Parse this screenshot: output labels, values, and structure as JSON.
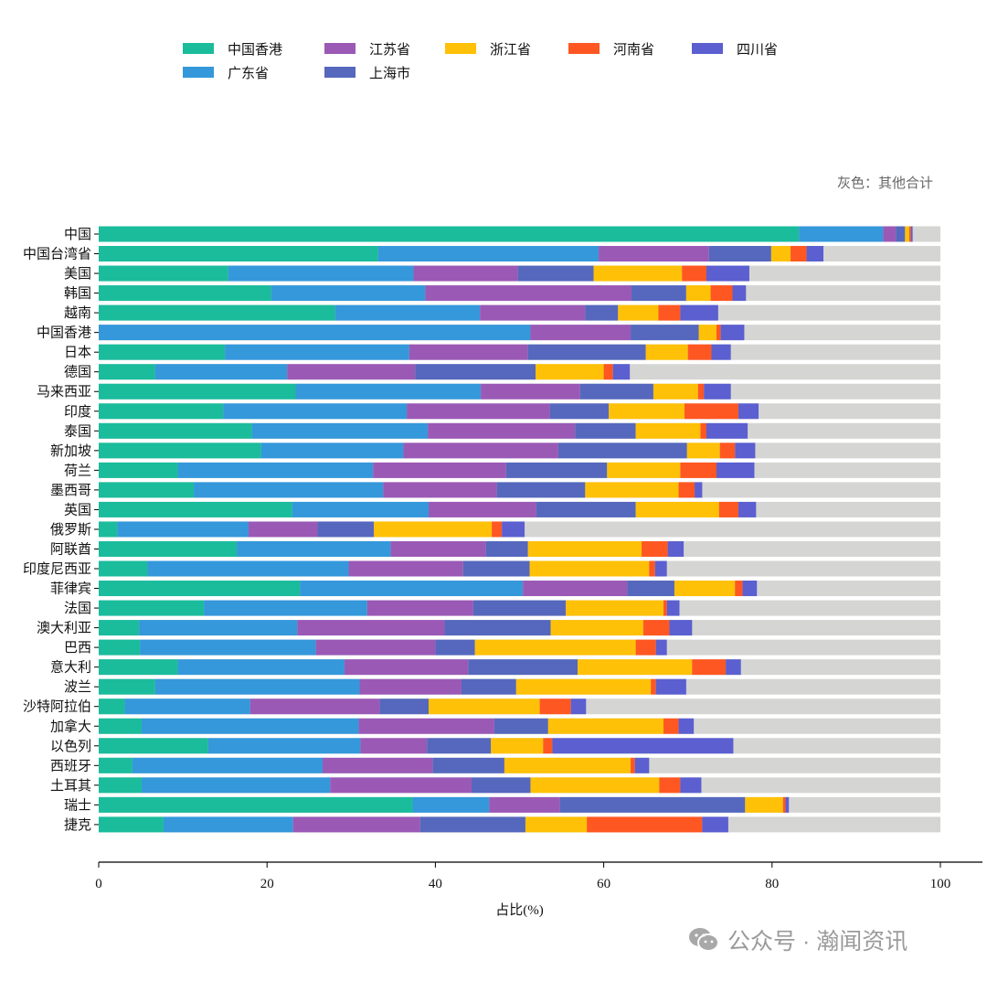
{
  "chart_data": {
    "type": "bar",
    "orientation": "horizontal",
    "stacked": true,
    "title": "",
    "xlabel": "占比(%)",
    "ylabel": "",
    "xlim": [
      0,
      100
    ],
    "xticks": [
      0,
      20,
      40,
      60,
      80,
      100
    ],
    "grid": false,
    "legend_placement": "top",
    "note": "灰色：其他合计",
    "remainder_color": "#d5d5d3",
    "categories": [
      "中国",
      "中国台湾省",
      "美国",
      "韩国",
      "越南",
      "中国香港",
      "日本",
      "德国",
      "马来西亚",
      "印度",
      "泰国",
      "新加坡",
      "荷兰",
      "墨西哥",
      "英国",
      "俄罗斯",
      "阿联酋",
      "印度尼西亚",
      "菲律宾",
      "法国",
      "澳大利亚",
      "巴西",
      "意大利",
      "波兰",
      "沙特阿拉伯",
      "加拿大",
      "以色列",
      "西班牙",
      "土耳其",
      "瑞士",
      "捷克"
    ],
    "series": [
      {
        "name": "中国香港",
        "color": "#1abc9c",
        "values": [
          83.2,
          33.2,
          15.4,
          20.5,
          28.1,
          0,
          15.0,
          6.7,
          23.4,
          14.8,
          18.2,
          19.3,
          9.4,
          11.3,
          23.0,
          2.2,
          16.4,
          5.8,
          23.9,
          12.5,
          4.8,
          4.9,
          9.4,
          6.7,
          3.1,
          5.1,
          13.0,
          4.0,
          5.1,
          37.3,
          7.7
        ]
      },
      {
        "name": "广东省",
        "color": "#3498db",
        "values": [
          10.0,
          26.2,
          22.0,
          18.3,
          17.2,
          51.3,
          21.9,
          15.7,
          22.0,
          21.8,
          20.9,
          16.9,
          23.2,
          22.5,
          16.2,
          15.6,
          18.3,
          23.9,
          26.5,
          19.4,
          18.8,
          20.9,
          19.8,
          24.3,
          14.9,
          25.8,
          18.1,
          22.6,
          22.4,
          9.1,
          15.4
        ]
      },
      {
        "name": "江苏省",
        "color": "#9b59b6",
        "values": [
          1.5,
          13.1,
          12.4,
          24.5,
          12.5,
          11.9,
          14.1,
          15.2,
          11.8,
          17.0,
          17.5,
          18.4,
          15.8,
          13.5,
          12.8,
          8.2,
          11.3,
          13.6,
          12.4,
          12.6,
          17.5,
          14.2,
          14.7,
          12.1,
          15.4,
          16.1,
          7.9,
          13.1,
          16.8,
          8.4,
          15.1
        ]
      },
      {
        "name": "上海市",
        "color": "#5568bd",
        "values": [
          1.1,
          7.4,
          9.0,
          6.5,
          3.9,
          8.1,
          14.0,
          14.3,
          8.7,
          7.0,
          7.2,
          15.3,
          12.0,
          10.5,
          11.8,
          6.7,
          5.0,
          7.9,
          5.6,
          11.0,
          12.6,
          4.7,
          13.0,
          6.5,
          5.8,
          6.4,
          7.6,
          8.5,
          7.0,
          22.0,
          12.5
        ]
      },
      {
        "name": "浙江省",
        "color": "#ffc107",
        "values": [
          0.5,
          2.3,
          10.5,
          2.9,
          4.8,
          2.1,
          5.0,
          8.1,
          5.3,
          9.0,
          7.7,
          3.9,
          8.7,
          11.1,
          9.9,
          14.0,
          13.5,
          14.2,
          7.2,
          11.6,
          11.0,
          19.1,
          13.6,
          16.0,
          13.2,
          13.7,
          6.2,
          15.0,
          15.3,
          4.5,
          7.3
        ]
      },
      {
        "name": "河南省",
        "color": "#ff5722",
        "values": [
          0.2,
          1.9,
          2.9,
          2.6,
          2.6,
          0.5,
          2.8,
          1.1,
          0.7,
          6.4,
          0.7,
          1.8,
          4.3,
          1.9,
          2.3,
          1.2,
          3.1,
          0.7,
          0.9,
          0.4,
          3.1,
          2.4,
          4.0,
          0.6,
          3.7,
          1.8,
          1.1,
          0.5,
          2.5,
          0.3,
          13.7
        ]
      },
      {
        "name": "四川省",
        "color": "#5b5fd0",
        "values": [
          0.2,
          2.0,
          5.1,
          1.6,
          4.5,
          2.8,
          2.3,
          2.0,
          3.2,
          2.4,
          4.9,
          2.4,
          4.5,
          0.9,
          2.1,
          2.7,
          1.9,
          1.4,
          1.7,
          1.5,
          2.7,
          1.3,
          1.8,
          3.6,
          1.8,
          1.8,
          21.5,
          1.7,
          2.5,
          0.4,
          3.1
        ]
      }
    ]
  },
  "legend_order": [
    "中国香港",
    "江苏省",
    "浙江省",
    "河南省",
    "四川省",
    "广东省",
    "上海市"
  ],
  "watermark": {
    "icon": "wechat-icon",
    "text": "公众号 · 瀚闻资讯"
  }
}
